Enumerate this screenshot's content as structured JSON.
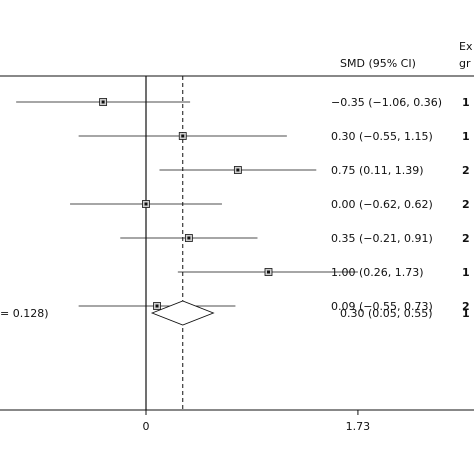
{
  "chart_data": {
    "type": "forest",
    "effect_header": "SMD (95% CI)",
    "group_header_line1": "Ex",
    "group_header_line2": "gr",
    "xaxis_tick_labels": [
      "0",
      "1.73"
    ],
    "xlim": [
      -1.73,
      1.73
    ],
    "null_line": 0,
    "overall_line": 0.3,
    "heterogeneity_text": "= 0.128)",
    "studies": [
      {
        "estimate": -0.35,
        "lower": -1.06,
        "upper": 0.36,
        "label": "−0.35 (−1.06, 0.36)",
        "n_fragment": "1"
      },
      {
        "estimate": 0.3,
        "lower": -0.55,
        "upper": 1.15,
        "label": "0.30 (−0.55, 1.15)",
        "n_fragment": "1"
      },
      {
        "estimate": 0.75,
        "lower": 0.11,
        "upper": 1.39,
        "label": "0.75 (0.11, 1.39)",
        "n_fragment": "2"
      },
      {
        "estimate": 0.0,
        "lower": -0.62,
        "upper": 0.62,
        "label": "0.00 (−0.62, 0.62)",
        "n_fragment": "2"
      },
      {
        "estimate": 0.35,
        "lower": -0.21,
        "upper": 0.91,
        "label": "0.35 (−0.21, 0.91)",
        "n_fragment": "2"
      },
      {
        "estimate": 1.0,
        "lower": 0.26,
        "upper": 1.73,
        "label": "1.00 (0.26, 1.73)",
        "n_fragment": "1"
      },
      {
        "estimate": 0.09,
        "lower": -0.55,
        "upper": 0.73,
        "label": "0.09 (−0.55, 0.73)",
        "n_fragment": "2"
      }
    ],
    "overall": {
      "estimate": 0.3,
      "lower": 0.05,
      "upper": 0.55,
      "label": "0.30 (0.05, 0.55)",
      "n_fragment": "1"
    }
  }
}
